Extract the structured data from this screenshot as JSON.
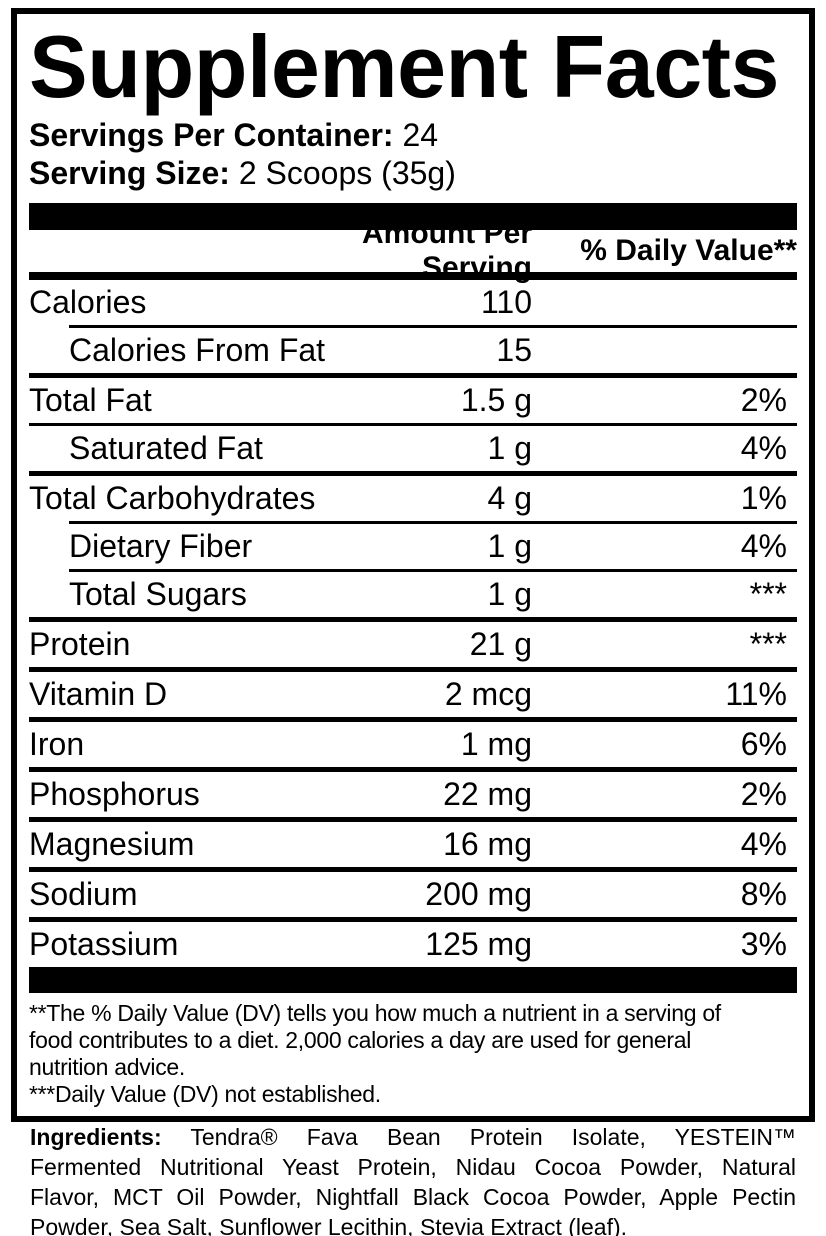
{
  "title": "Supplement Facts",
  "serving_info": {
    "servings_per_container_label": "Servings Per Container:",
    "servings_per_container_value": "24",
    "serving_size_label": "Serving Size:",
    "serving_size_value": "2 Scoops (35g)"
  },
  "table": {
    "amount_header": "Amount Per Serving",
    "dv_header": "% Daily Value**",
    "rows": [
      {
        "name": "Calories",
        "amount": "110",
        "dv": ""
      },
      {
        "name": "Calories From Fat",
        "amount": "15",
        "dv": ""
      },
      {
        "name": "Total Fat",
        "amount": "1.5 g",
        "dv": "2%"
      },
      {
        "name": "Saturated Fat",
        "amount": "1 g",
        "dv": "4%"
      },
      {
        "name": "Total Carbohydrates",
        "amount": "4 g",
        "dv": "1%"
      },
      {
        "name": "Dietary Fiber",
        "amount": "1 g",
        "dv": "4%"
      },
      {
        "name": "Total Sugars",
        "amount": "1 g",
        "dv": "***"
      },
      {
        "name": "Protein",
        "amount": "21 g",
        "dv": "***"
      },
      {
        "name": "Vitamin D",
        "amount": "2 mcg",
        "dv": "11%"
      },
      {
        "name": "Iron",
        "amount": "1 mg",
        "dv": "6%"
      },
      {
        "name": "Phosphorus",
        "amount": "22 mg",
        "dv": "2%"
      },
      {
        "name": "Magnesium",
        "amount": "16 mg",
        "dv": "4%"
      },
      {
        "name": "Sodium",
        "amount": "200 mg",
        "dv": "8%"
      },
      {
        "name": "Potassium",
        "amount": "125 mg",
        "dv": "3%"
      }
    ]
  },
  "footnotes": {
    "dv_lines": [
      "**The % Daily Value (DV) tells you how much a nutrient in a serving of",
      "food contributes to a diet. 2,000 calories a day are used for general",
      "nutrition advice."
    ],
    "not_established": "***Daily Value (DV) not established."
  },
  "ingredients": {
    "label": "Ingredients:",
    "line1_rest": "Tendra® Fava Bean Protein Isolate, YESTEIN™",
    "line2": "Fermented Nutritional Yeast Protein, Nidau Cocoa Powder, Natural",
    "line3": "Flavor, MCT Oil Powder, Nightfall Black Cocoa Powder, Apple Pectin",
    "line4": "Powder, Sea Salt, Sunflower Lecithin, Stevia Extract (leaf)."
  },
  "colors": {
    "text": "#000000",
    "background": "#ffffff"
  }
}
